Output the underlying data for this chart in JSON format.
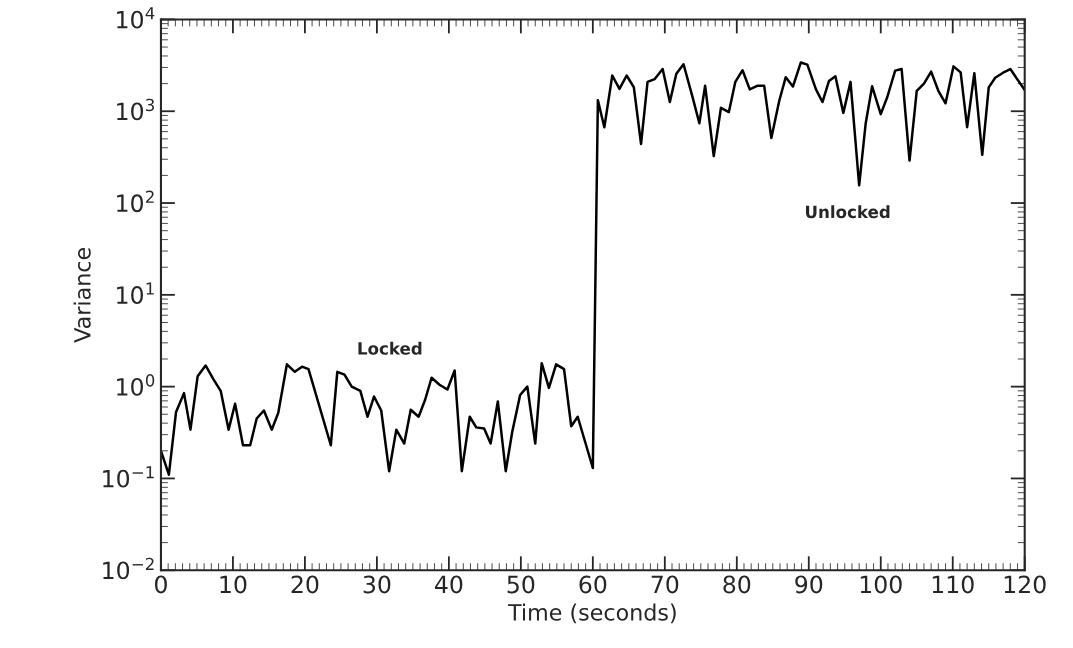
{
  "chart_data": {
    "type": "line",
    "xlabel": "Time (seconds)",
    "ylabel": "Variance",
    "log": "y",
    "xlim": [
      0,
      120
    ],
    "xticks": [
      0,
      10,
      20,
      30,
      40,
      50,
      60,
      70,
      80,
      90,
      100,
      110,
      120
    ],
    "ylim": [
      0.01,
      10000
    ],
    "yticks": [
      {
        "value": 0.01,
        "label": "10$^{−2}$"
      },
      {
        "value": 0.1,
        "label": "10$^{−1}$"
      },
      {
        "value": 1,
        "label": "10$^{0}$"
      },
      {
        "value": 10,
        "label": "10$^{1}$"
      },
      {
        "value": 100,
        "label": "10$^{2}$"
      },
      {
        "value": 1000,
        "label": "10$^{3}$"
      },
      {
        "value": 10000,
        "label": "10$^{4}$"
      }
    ],
    "marker": "none",
    "line_style": "solid",
    "annotations": [
      "Locked",
      "Unlocked"
    ],
    "series": [
      {
        "color": "#000000",
        "x": [
          0,
          1.1,
          2.1,
          3.2,
          4.1,
          5.1,
          6.2,
          7.3,
          8.3,
          9.4,
          10.3,
          11.4,
          12.4,
          13.3,
          14.3,
          15.4,
          16.3,
          17.5,
          18.6,
          19.6,
          20.5,
          23.6,
          24.5,
          25.5,
          26.5,
          27.7,
          28.7,
          29.6,
          30.6,
          31.7,
          32.7,
          33.8,
          34.7,
          35.8,
          36.7,
          37.6,
          38.7,
          39.8,
          40.8,
          41.8,
          42.9,
          43.8,
          44.9,
          45.8,
          46.8,
          47.9,
          48.8,
          49.9,
          50.9,
          52.0,
          52.9,
          53.9,
          54.9,
          56.0,
          57.0,
          57.9,
          60.0,
          60.7,
          61.6,
          62.7,
          63.7,
          64.7,
          65.7,
          66.7,
          67.6,
          68.6,
          69.7,
          70.7,
          71.6,
          72.6,
          73.8,
          74.8,
          75.6,
          76.8,
          77.8,
          78.9,
          79.8,
          80.8,
          81.8,
          82.9,
          83.8,
          84.8,
          85.9,
          86.8,
          87.8,
          88.9,
          89.8,
          91.0,
          91.9,
          92.8,
          93.7,
          94.8,
          95.8,
          97.0,
          97.9,
          98.8,
          100.0,
          100.9,
          102.0,
          102.9,
          104.0,
          105.0,
          106.0,
          107.0,
          108.0,
          109.0,
          110.1,
          111.1,
          112.0,
          113.0,
          114.1,
          115.0,
          115.9,
          117.0,
          118.0,
          120.0
        ],
        "values": [
          0.2,
          0.11,
          0.53,
          0.85,
          0.34,
          1.3,
          1.7,
          1.2,
          0.9,
          0.34,
          0.65,
          0.23,
          0.23,
          0.45,
          0.55,
          0.34,
          0.52,
          1.75,
          1.45,
          1.65,
          1.55,
          0.23,
          1.45,
          1.35,
          1.0,
          0.9,
          0.47,
          0.78,
          0.55,
          0.12,
          0.34,
          0.24,
          0.56,
          0.47,
          0.72,
          1.25,
          1.05,
          0.93,
          1.5,
          0.12,
          0.47,
          0.36,
          0.35,
          0.24,
          0.69,
          0.12,
          0.32,
          0.81,
          1.0,
          0.24,
          1.8,
          0.97,
          1.75,
          1.55,
          0.37,
          0.47,
          0.13,
          1320,
          670,
          2450,
          1750,
          2450,
          1820,
          440,
          2090,
          2240,
          2880,
          1260,
          2560,
          3250,
          1480,
          740,
          1900,
          325,
          1090,
          980,
          2090,
          2800,
          1730,
          1900,
          1900,
          510,
          1300,
          2350,
          1860,
          3400,
          3220,
          1730,
          1260,
          2130,
          2400,
          960,
          2090,
          156,
          730,
          1870,
          930,
          1420,
          2770,
          2880,
          290,
          1670,
          2000,
          2700,
          1670,
          1220,
          3080,
          2650,
          670,
          2600,
          335,
          1820,
          2320,
          2630,
          2880,
          1700
        ]
      }
    ]
  }
}
